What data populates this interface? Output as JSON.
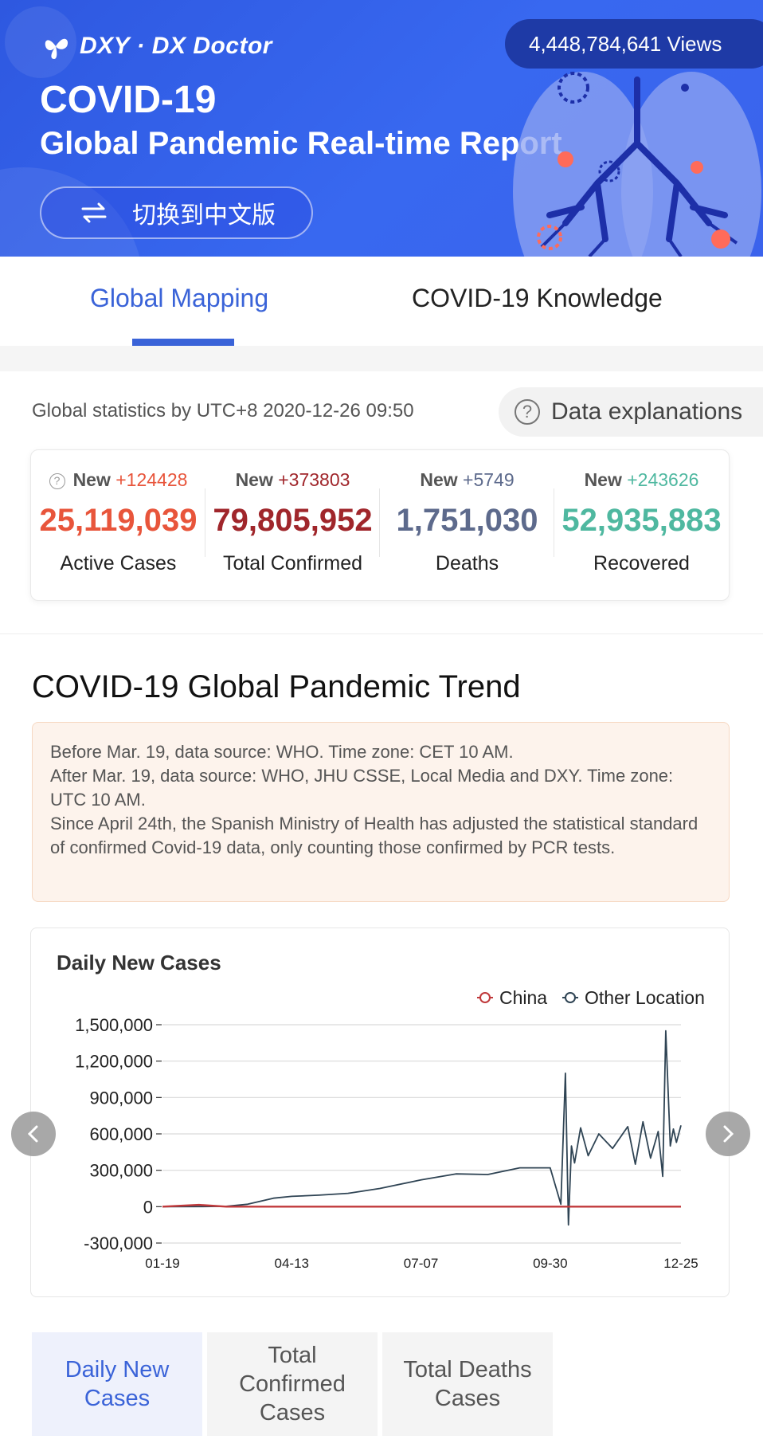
{
  "banner": {
    "logo_text": "DXY · DX Doctor",
    "title_line1": "COVID-19",
    "title_line2": "Global Pandemic Real-time Report",
    "language_button": "切换到中文版",
    "views": "4,448,784,641 Views",
    "colors": {
      "background": "#3366ee",
      "views_pill": "#1e3aa6"
    }
  },
  "tabs": [
    {
      "label": "Global Mapping",
      "active": true
    },
    {
      "label": "COVID-19 Knowledge",
      "active": false
    }
  ],
  "stats": {
    "header": "Global statistics by UTC+8 2020-12-26 09:50",
    "data_explanations": "Data explanations",
    "new_label": "New",
    "items": [
      {
        "delta": "+124428",
        "value": "25,119,039",
        "label": "Active Cases",
        "color": "#e8553b"
      },
      {
        "delta": "+373803",
        "value": "79,805,952",
        "label": "Total Confirmed",
        "color": "#a0262b"
      },
      {
        "delta": "+5749",
        "value": "1,751,030",
        "label": "Deaths",
        "color": "#5d6a8c"
      },
      {
        "delta": "+243626",
        "value": "52,935,883",
        "label": "Recovered",
        "color": "#4fb8a0"
      }
    ]
  },
  "trend": {
    "title": "COVID-19 Global Pandemic Trend",
    "notice_lines": [
      "Before Mar. 19, data source: WHO. Time zone: CET 10 AM.",
      "After Mar. 19, data source: WHO, JHU CSSE, Local Media and DXY. Time zone: UTC 10 AM.",
      "Since April 24th, the Spanish Ministry of Health has adjusted the statistical standard of confirmed Covid-19 data, only counting those confirmed by PCR tests."
    ]
  },
  "chart_data": {
    "type": "line",
    "title": "Daily New Cases",
    "x_tick_labels": [
      "01-19",
      "04-13",
      "07-07",
      "09-30",
      "12-25"
    ],
    "ylim": [
      -300000,
      1500000
    ],
    "y_ticks": [
      -300000,
      0,
      300000,
      600000,
      900000,
      1200000,
      1500000
    ],
    "y_tick_labels": [
      "-300,000",
      "0",
      "300,000",
      "600,000",
      "900,000",
      "1,200,000",
      "1,500,000"
    ],
    "grid": true,
    "legend_position": "top-right",
    "series": [
      {
        "name": "China",
        "color": "#c0393b",
        "x": [
          "01-19",
          "02-12",
          "03-01",
          "04-13",
          "07-07",
          "09-30",
          "12-25"
        ],
        "values": [
          0,
          15000,
          500,
          100,
          50,
          20,
          30
        ]
      },
      {
        "name": "Other Location",
        "color": "#2f4454",
        "x": [
          "01-19",
          "02-15",
          "03-01",
          "03-15",
          "04-01",
          "04-13",
          "05-01",
          "05-20",
          "06-10",
          "07-07",
          "07-30",
          "08-20",
          "09-10",
          "09-30",
          "10-07",
          "10-10",
          "10-12",
          "10-14",
          "10-16",
          "10-20",
          "10-25",
          "11-01",
          "11-10",
          "11-20",
          "11-25",
          "11-30",
          "12-05",
          "12-10",
          "12-13",
          "12-15",
          "12-18",
          "12-20",
          "12-22",
          "12-25"
        ],
        "values": [
          0,
          1000,
          3000,
          20000,
          70000,
          85000,
          95000,
          110000,
          150000,
          220000,
          270000,
          265000,
          320000,
          320000,
          20000,
          1100000,
          -150000,
          500000,
          360000,
          650000,
          420000,
          600000,
          480000,
          660000,
          350000,
          700000,
          400000,
          620000,
          250000,
          1450000,
          500000,
          640000,
          530000,
          670000
        ]
      }
    ]
  },
  "bottom_tabs": [
    {
      "label": "Daily New Cases",
      "active": true
    },
    {
      "label": "Total Confirmed Cases",
      "active": false
    },
    {
      "label": "Total Deaths Cases",
      "active": false
    }
  ],
  "icons": [
    "logo-icon",
    "swap-icon",
    "help-icon",
    "chevron-left-icon",
    "chevron-right-icon"
  ]
}
